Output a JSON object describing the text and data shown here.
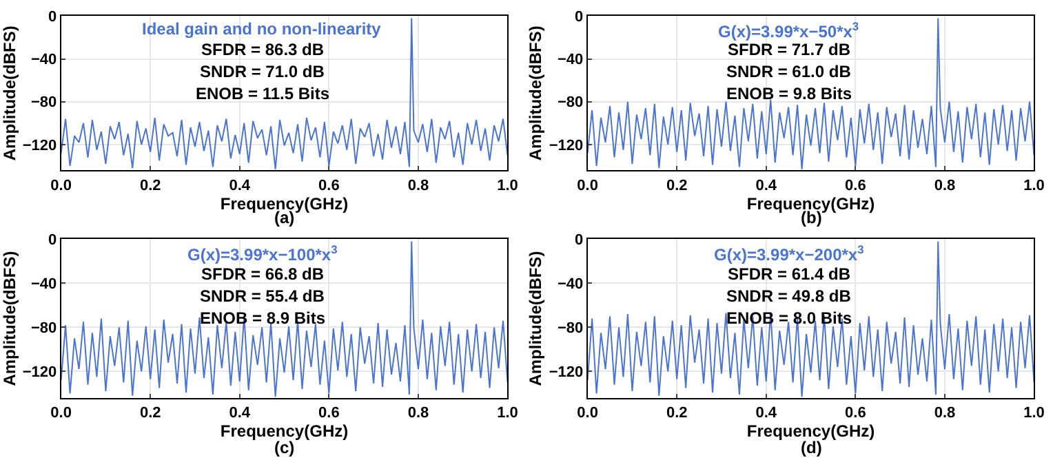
{
  "chart_data": [
    {
      "type": "line",
      "title": "Ideal gain and no non-linearity",
      "xlabel": "Frequency(GHz)",
      "ylabel": "Amplitude(dBFS)",
      "annotations": [
        "SFDR = 86.3 dB",
        "SNDR = 71.0 dB",
        "ENOB = 11.5 Bits",
        "(a)"
      ],
      "xlim": [
        0,
        1
      ],
      "ylim": [
        -144,
        0
      ],
      "xticks": [
        {
          "value": 0,
          "label": "0.0"
        },
        {
          "value": 0.2,
          "label": "0.2"
        },
        {
          "value": 0.4,
          "label": "0.4"
        },
        {
          "value": 0.6,
          "label": "0.6"
        },
        {
          "value": 0.8,
          "label": "0.8"
        },
        {
          "value": 1,
          "label": "1.0"
        }
      ],
      "yticks": [
        0,
        {
          "value": -40,
          "label": "−40"
        },
        {
          "value": -80,
          "label": "−80"
        },
        {
          "value": -120,
          "label": "−120"
        }
      ],
      "grid": true,
      "x": [
        0,
        0.01,
        0.02,
        0.03,
        0.04,
        0.05,
        0.06,
        0.07,
        0.08,
        0.09,
        0.1,
        0.11,
        0.12,
        0.13,
        0.14,
        0.15,
        0.16,
        0.17,
        0.18,
        0.19,
        0.2,
        0.21,
        0.22,
        0.23,
        0.24,
        0.25,
        0.26,
        0.27,
        0.28,
        0.29,
        0.3,
        0.31,
        0.32,
        0.33,
        0.34,
        0.35,
        0.36,
        0.37,
        0.38,
        0.39,
        0.4,
        0.41,
        0.42,
        0.43,
        0.44,
        0.45,
        0.46,
        0.47,
        0.48,
        0.49,
        0.5,
        0.51,
        0.52,
        0.53,
        0.54,
        0.55,
        0.56,
        0.57,
        0.58,
        0.59,
        0.6,
        0.61,
        0.62,
        0.63,
        0.64,
        0.65,
        0.66,
        0.67,
        0.68,
        0.69,
        0.7,
        0.71,
        0.72,
        0.73,
        0.74,
        0.75,
        0.76,
        0.77,
        0.78,
        0.785,
        0.79,
        0.8,
        0.81,
        0.82,
        0.83,
        0.84,
        0.85,
        0.86,
        0.87,
        0.88,
        0.89,
        0.9,
        0.91,
        0.92,
        0.93,
        0.94,
        0.95,
        0.96,
        0.97,
        0.98,
        0.99,
        1
      ],
      "series": [
        {
          "color": "#4a74d4",
          "values": [
            -128,
            -96,
            -140,
            -112,
            -118,
            -100,
            -132,
            -97,
            -125,
            -108,
            -138,
            -103,
            -115,
            -99,
            -130,
            -110,
            -142,
            -98,
            -120,
            -105,
            -127,
            -95,
            -135,
            -101,
            -112,
            -109,
            -131,
            -97,
            -139,
            -104,
            -122,
            -99,
            -126,
            -107,
            -141,
            -102,
            -117,
            -96,
            -133,
            -111,
            -129,
            -100,
            -137,
            -98,
            -114,
            -106,
            -130,
            -103,
            -143,
            -97,
            -121,
            -109,
            -128,
            -101,
            -136,
            -95,
            -116,
            -104,
            -132,
            -99,
            -140,
            -108,
            -119,
            -102,
            -125,
            -96,
            -138,
            -105,
            -113,
            -100,
            -131,
            -110,
            -134,
            -97,
            -123,
            -103,
            -129,
            -99,
            -141,
            -2,
            -107,
            -118,
            -101,
            -127,
            -96,
            -137,
            -104,
            -115,
            -98,
            -132,
            -109,
            -139,
            -100,
            -120,
            -97,
            -126,
            -105,
            -135,
            -102,
            -117,
            -96,
            -130
          ]
        }
      ]
    },
    {
      "type": "line",
      "title": "G(x)=3.99*x−50*x$^{3}$",
      "xlabel": "Frequency(GHz)",
      "ylabel": "Amplitude(dBFS)",
      "annotations": [
        "SFDR = 71.7 dB",
        "SNDR = 61.0 dB",
        "ENOB = 9.8 Bits",
        "(b)"
      ],
      "xlim": [
        0,
        1
      ],
      "ylim": [
        -144,
        0
      ],
      "xticks": [
        {
          "value": 0,
          "label": "0.0"
        },
        {
          "value": 0.2,
          "label": "0.2"
        },
        {
          "value": 0.4,
          "label": "0.4"
        },
        {
          "value": 0.6,
          "label": "0.6"
        },
        {
          "value": 0.8,
          "label": "0.8"
        },
        {
          "value": 1,
          "label": "1.0"
        }
      ],
      "yticks": [
        0,
        {
          "value": -40,
          "label": "−40"
        },
        {
          "value": -80,
          "label": "−80"
        },
        {
          "value": -120,
          "label": "−120"
        }
      ],
      "grid": true,
      "x": [
        0,
        0.01,
        0.02,
        0.03,
        0.04,
        0.05,
        0.06,
        0.07,
        0.08,
        0.09,
        0.1,
        0.11,
        0.12,
        0.13,
        0.14,
        0.15,
        0.16,
        0.17,
        0.18,
        0.19,
        0.2,
        0.21,
        0.22,
        0.23,
        0.24,
        0.25,
        0.26,
        0.27,
        0.28,
        0.29,
        0.3,
        0.31,
        0.32,
        0.33,
        0.34,
        0.35,
        0.36,
        0.37,
        0.38,
        0.39,
        0.4,
        0.41,
        0.42,
        0.43,
        0.44,
        0.45,
        0.46,
        0.47,
        0.48,
        0.49,
        0.5,
        0.51,
        0.52,
        0.53,
        0.54,
        0.55,
        0.56,
        0.57,
        0.58,
        0.59,
        0.6,
        0.61,
        0.62,
        0.63,
        0.64,
        0.65,
        0.66,
        0.67,
        0.68,
        0.69,
        0.7,
        0.71,
        0.72,
        0.73,
        0.74,
        0.75,
        0.76,
        0.77,
        0.78,
        0.785,
        0.79,
        0.8,
        0.81,
        0.82,
        0.83,
        0.84,
        0.85,
        0.86,
        0.87,
        0.88,
        0.89,
        0.9,
        0.91,
        0.92,
        0.93,
        0.94,
        0.95,
        0.96,
        0.97,
        0.98,
        0.99,
        1
      ],
      "series": [
        {
          "color": "#4a74d4",
          "values": [
            -128,
            -88,
            -140,
            -95,
            -118,
            -84,
            -132,
            -90,
            -125,
            -80,
            -138,
            -92,
            -115,
            -86,
            -130,
            -82,
            -142,
            -94,
            -120,
            -85,
            -127,
            -88,
            -135,
            -81,
            -112,
            -91,
            -131,
            -84,
            -139,
            -87,
            -122,
            -80,
            -126,
            -93,
            -141,
            -86,
            -117,
            -82,
            -133,
            -89,
            -129,
            -78,
            -137,
            -90,
            -114,
            -85,
            -130,
            -83,
            -143,
            -92,
            -121,
            -86,
            -128,
            -81,
            -136,
            -88,
            -116,
            -84,
            -132,
            -95,
            -140,
            -87,
            -119,
            -82,
            -125,
            -90,
            -138,
            -85,
            -113,
            -91,
            -131,
            -83,
            -134,
            -88,
            -123,
            -96,
            -129,
            -84,
            -141,
            -2,
            -86,
            -118,
            -80,
            -127,
            -89,
            -137,
            -85,
            -115,
            -82,
            -132,
            -90,
            -139,
            -87,
            -120,
            -83,
            -126,
            -88,
            -135,
            -86,
            -117,
            -80,
            -130
          ]
        }
      ]
    },
    {
      "type": "line",
      "title": "G(x)=3.99*x−100*x$^{3}$",
      "xlabel": "Frequency(GHz)",
      "ylabel": "Amplitude(dBFS)",
      "annotations": [
        "SFDR = 66.8 dB",
        "SNDR = 55.4 dB",
        "ENOB = 8.9 Bits",
        "(c)"
      ],
      "xlim": [
        0,
        1
      ],
      "ylim": [
        -144,
        0
      ],
      "xticks": [
        {
          "value": 0,
          "label": "0.0"
        },
        {
          "value": 0.2,
          "label": "0.2"
        },
        {
          "value": 0.4,
          "label": "0.4"
        },
        {
          "value": 0.6,
          "label": "0.6"
        },
        {
          "value": 0.8,
          "label": "0.8"
        },
        {
          "value": 1,
          "label": "1.0"
        }
      ],
      "yticks": [
        0,
        {
          "value": -40,
          "label": "−40"
        },
        {
          "value": -80,
          "label": "−80"
        },
        {
          "value": -120,
          "label": "−120"
        }
      ],
      "grid": true,
      "x": [
        0,
        0.01,
        0.02,
        0.03,
        0.04,
        0.05,
        0.06,
        0.07,
        0.08,
        0.09,
        0.1,
        0.11,
        0.12,
        0.13,
        0.14,
        0.15,
        0.16,
        0.17,
        0.18,
        0.19,
        0.2,
        0.21,
        0.22,
        0.23,
        0.24,
        0.25,
        0.26,
        0.27,
        0.28,
        0.29,
        0.3,
        0.31,
        0.32,
        0.33,
        0.34,
        0.35,
        0.36,
        0.37,
        0.38,
        0.39,
        0.4,
        0.41,
        0.42,
        0.43,
        0.44,
        0.45,
        0.46,
        0.47,
        0.48,
        0.49,
        0.5,
        0.51,
        0.52,
        0.53,
        0.54,
        0.55,
        0.56,
        0.57,
        0.58,
        0.59,
        0.6,
        0.61,
        0.62,
        0.63,
        0.64,
        0.65,
        0.66,
        0.67,
        0.68,
        0.69,
        0.7,
        0.71,
        0.72,
        0.73,
        0.74,
        0.75,
        0.76,
        0.77,
        0.78,
        0.785,
        0.79,
        0.8,
        0.81,
        0.82,
        0.83,
        0.84,
        0.85,
        0.86,
        0.87,
        0.88,
        0.89,
        0.9,
        0.91,
        0.92,
        0.93,
        0.94,
        0.95,
        0.96,
        0.97,
        0.98,
        0.99,
        1
      ],
      "series": [
        {
          "color": "#4a74d4",
          "values": [
            -128,
            -78,
            -140,
            -90,
            -118,
            -75,
            -132,
            -85,
            -125,
            -72,
            -138,
            -88,
            -115,
            -80,
            -130,
            -74,
            -142,
            -92,
            -120,
            -79,
            -127,
            -82,
            -135,
            -73,
            -112,
            -86,
            -131,
            -77,
            -139,
            -81,
            -122,
            -71,
            -126,
            -89,
            -141,
            -78,
            -117,
            -75,
            -133,
            -84,
            -129,
            -70,
            -137,
            -87,
            -114,
            -80,
            -130,
            -76,
            -143,
            -90,
            -121,
            -79,
            -128,
            -74,
            -136,
            -83,
            -116,
            -77,
            -132,
            -92,
            -140,
            -81,
            -119,
            -75,
            -125,
            -86,
            -138,
            -80,
            -113,
            -88,
            -131,
            -76,
            -134,
            -82,
            -123,
            -94,
            -129,
            -78,
            -141,
            -2,
            -80,
            -118,
            -73,
            -127,
            -85,
            -137,
            -79,
            -115,
            -75,
            -132,
            -86,
            -139,
            -82,
            -120,
            -77,
            -126,
            -84,
            -135,
            -80,
            -117,
            -74,
            -130
          ]
        }
      ]
    },
    {
      "type": "line",
      "title": "G(x)=3.99*x−200*x$^{3}$",
      "xlabel": "Frequency(GHz)",
      "ylabel": "Amplitude(dBFS)",
      "annotations": [
        "SFDR = 61.4 dB",
        "SNDR = 49.8 dB",
        "ENOB = 8.0 Bits",
        "(d)"
      ],
      "xlim": [
        0,
        1
      ],
      "ylim": [
        -144,
        0
      ],
      "xticks": [
        {
          "value": 0,
          "label": "0.0"
        },
        {
          "value": 0.2,
          "label": "0.2"
        },
        {
          "value": 0.4,
          "label": "0.4"
        },
        {
          "value": 0.6,
          "label": "0.6"
        },
        {
          "value": 0.8,
          "label": "0.8"
        },
        {
          "value": 1,
          "label": "1.0"
        }
      ],
      "yticks": [
        0,
        {
          "value": -40,
          "label": "−40"
        },
        {
          "value": -80,
          "label": "−80"
        },
        {
          "value": -120,
          "label": "−120"
        }
      ],
      "grid": true,
      "x": [
        0,
        0.01,
        0.02,
        0.03,
        0.04,
        0.05,
        0.06,
        0.07,
        0.08,
        0.09,
        0.1,
        0.11,
        0.12,
        0.13,
        0.14,
        0.15,
        0.16,
        0.17,
        0.18,
        0.19,
        0.2,
        0.21,
        0.22,
        0.23,
        0.24,
        0.25,
        0.26,
        0.27,
        0.28,
        0.29,
        0.3,
        0.31,
        0.32,
        0.33,
        0.34,
        0.35,
        0.36,
        0.37,
        0.38,
        0.39,
        0.4,
        0.41,
        0.42,
        0.43,
        0.44,
        0.45,
        0.46,
        0.47,
        0.48,
        0.49,
        0.5,
        0.51,
        0.52,
        0.53,
        0.54,
        0.55,
        0.56,
        0.57,
        0.58,
        0.59,
        0.6,
        0.61,
        0.62,
        0.63,
        0.64,
        0.65,
        0.66,
        0.67,
        0.68,
        0.69,
        0.7,
        0.71,
        0.72,
        0.73,
        0.74,
        0.75,
        0.76,
        0.77,
        0.78,
        0.785,
        0.79,
        0.8,
        0.81,
        0.82,
        0.83,
        0.84,
        0.85,
        0.86,
        0.87,
        0.88,
        0.89,
        0.9,
        0.91,
        0.92,
        0.93,
        0.94,
        0.95,
        0.96,
        0.97,
        0.98,
        0.99,
        1
      ],
      "series": [
        {
          "color": "#4a74d4",
          "values": [
            -128,
            -72,
            -140,
            -85,
            -118,
            -70,
            -132,
            -80,
            -125,
            -68,
            -138,
            -84,
            -115,
            -75,
            -130,
            -70,
            -142,
            -88,
            -120,
            -74,
            -127,
            -78,
            -135,
            -69,
            -112,
            -82,
            -131,
            -72,
            -139,
            -76,
            -122,
            -67,
            -126,
            -85,
            -141,
            -73,
            -117,
            -70,
            -133,
            -80,
            -129,
            -66,
            -137,
            -83,
            -114,
            -75,
            -130,
            -71,
            -143,
            -86,
            -121,
            -74,
            -128,
            -69,
            -136,
            -79,
            -116,
            -72,
            -132,
            -88,
            -140,
            -76,
            -119,
            -70,
            -125,
            -82,
            -138,
            -75,
            -113,
            -84,
            -131,
            -71,
            -134,
            -78,
            -123,
            -90,
            -129,
            -73,
            -141,
            -2,
            -76,
            -118,
            -68,
            -127,
            -81,
            -137,
            -74,
            -115,
            -70,
            -132,
            -82,
            -139,
            -77,
            -120,
            -72,
            -126,
            -80,
            -135,
            -75,
            -117,
            -69,
            -130
          ]
        }
      ]
    }
  ]
}
